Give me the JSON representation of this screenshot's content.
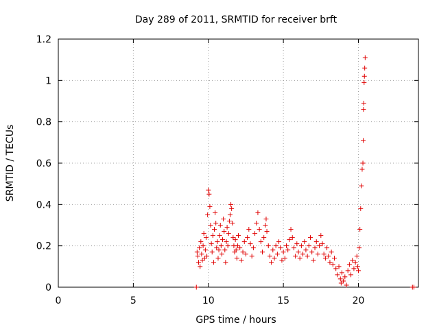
{
  "chart_data": {
    "type": "scatter",
    "title": "Day 289 of 2011, SRMTID for receiver brft",
    "xlabel": "GPS time / hours",
    "ylabel": "SRMTID / TECUs",
    "xlim": [
      0,
      24
    ],
    "ylim": [
      0,
      1.2
    ],
    "grid": true,
    "x_ticks": [
      0,
      5,
      10,
      15,
      20
    ],
    "x_tick_labels": [
      "0",
      "5",
      "10",
      "15",
      "20"
    ],
    "y_ticks": [
      0,
      0.2,
      0.4,
      0.6,
      0.8,
      1,
      1.2
    ],
    "y_tick_labels": [
      "0",
      "0.2",
      "0.4",
      "0.6",
      "0.8",
      "1",
      "1.2"
    ],
    "series": [
      {
        "name": "SRMTID",
        "color": "#e00000",
        "marker": "plus",
        "points": [
          [
            9.2,
            0.0
          ],
          [
            9.25,
            0.17
          ],
          [
            9.3,
            0.15
          ],
          [
            9.35,
            0.12
          ],
          [
            9.4,
            0.19
          ],
          [
            9.45,
            0.1
          ],
          [
            9.5,
            0.22
          ],
          [
            9.55,
            0.16
          ],
          [
            9.6,
            0.13
          ],
          [
            9.65,
            0.2
          ],
          [
            9.7,
            0.26
          ],
          [
            9.75,
            0.14
          ],
          [
            9.8,
            0.18
          ],
          [
            9.85,
            0.24
          ],
          [
            9.9,
            0.15
          ],
          [
            9.95,
            0.35
          ],
          [
            10.0,
            0.47
          ],
          [
            10.05,
            0.45
          ],
          [
            10.1,
            0.39
          ],
          [
            10.15,
            0.3
          ],
          [
            10.2,
            0.21
          ],
          [
            10.25,
            0.17
          ],
          [
            10.3,
            0.25
          ],
          [
            10.35,
            0.12
          ],
          [
            10.4,
            0.28
          ],
          [
            10.45,
            0.36
          ],
          [
            10.5,
            0.31
          ],
          [
            10.55,
            0.19
          ],
          [
            10.6,
            0.22
          ],
          [
            10.65,
            0.14
          ],
          [
            10.7,
            0.18
          ],
          [
            10.75,
            0.25
          ],
          [
            10.8,
            0.3
          ],
          [
            10.85,
            0.2
          ],
          [
            10.9,
            0.16
          ],
          [
            10.95,
            0.23
          ],
          [
            11.0,
            0.33
          ],
          [
            11.05,
            0.27
          ],
          [
            11.1,
            0.18
          ],
          [
            11.15,
            0.12
          ],
          [
            11.2,
            0.22
          ],
          [
            11.25,
            0.29
          ],
          [
            11.3,
            0.2
          ],
          [
            11.35,
            0.26
          ],
          [
            11.4,
            0.32
          ],
          [
            11.45,
            0.35
          ],
          [
            11.5,
            0.4
          ],
          [
            11.55,
            0.38
          ],
          [
            11.6,
            0.31
          ],
          [
            11.65,
            0.24
          ],
          [
            11.7,
            0.2
          ],
          [
            11.75,
            0.17
          ],
          [
            11.8,
            0.23
          ],
          [
            11.85,
            0.18
          ],
          [
            11.9,
            0.14
          ],
          [
            11.95,
            0.2
          ],
          [
            12.0,
            0.25
          ],
          [
            12.1,
            0.19
          ],
          [
            12.2,
            0.13
          ],
          [
            12.3,
            0.17
          ],
          [
            12.4,
            0.22
          ],
          [
            12.5,
            0.16
          ],
          [
            12.6,
            0.24
          ],
          [
            12.7,
            0.28
          ],
          [
            12.8,
            0.21
          ],
          [
            12.9,
            0.15
          ],
          [
            13.0,
            0.19
          ],
          [
            13.1,
            0.26
          ],
          [
            13.2,
            0.31
          ],
          [
            13.3,
            0.36
          ],
          [
            13.4,
            0.28
          ],
          [
            13.5,
            0.22
          ],
          [
            13.6,
            0.17
          ],
          [
            13.7,
            0.24
          ],
          [
            13.8,
            0.3
          ],
          [
            13.85,
            0.33
          ],
          [
            13.9,
            0.27
          ],
          [
            14.0,
            0.2
          ],
          [
            14.1,
            0.15
          ],
          [
            14.2,
            0.12
          ],
          [
            14.3,
            0.18
          ],
          [
            14.4,
            0.14
          ],
          [
            14.5,
            0.2
          ],
          [
            14.6,
            0.16
          ],
          [
            14.7,
            0.22
          ],
          [
            14.8,
            0.19
          ],
          [
            14.9,
            0.13
          ],
          [
            15.0,
            0.17
          ],
          [
            15.1,
            0.14
          ],
          [
            15.2,
            0.2
          ],
          [
            15.3,
            0.18
          ],
          [
            15.4,
            0.23
          ],
          [
            15.5,
            0.28
          ],
          [
            15.6,
            0.24
          ],
          [
            15.7,
            0.19
          ],
          [
            15.8,
            0.15
          ],
          [
            15.9,
            0.21
          ],
          [
            16.0,
            0.17
          ],
          [
            16.1,
            0.14
          ],
          [
            16.2,
            0.2
          ],
          [
            16.3,
            0.16
          ],
          [
            16.4,
            0.22
          ],
          [
            16.5,
            0.18
          ],
          [
            16.6,
            0.15
          ],
          [
            16.7,
            0.2
          ],
          [
            16.8,
            0.24
          ],
          [
            16.9,
            0.17
          ],
          [
            17.0,
            0.13
          ],
          [
            17.1,
            0.19
          ],
          [
            17.2,
            0.22
          ],
          [
            17.3,
            0.16
          ],
          [
            17.4,
            0.2
          ],
          [
            17.5,
            0.25
          ],
          [
            17.6,
            0.21
          ],
          [
            17.7,
            0.16
          ],
          [
            17.8,
            0.14
          ],
          [
            17.9,
            0.19
          ],
          [
            18.0,
            0.15
          ],
          [
            18.1,
            0.12
          ],
          [
            18.2,
            0.17
          ],
          [
            18.3,
            0.11
          ],
          [
            18.4,
            0.14
          ],
          [
            18.5,
            0.09
          ],
          [
            18.6,
            0.06
          ],
          [
            18.7,
            0.1
          ],
          [
            18.8,
            0.04
          ],
          [
            18.85,
            0.02
          ],
          [
            18.9,
            0.07
          ],
          [
            19.0,
            0.03
          ],
          [
            19.1,
            0.05
          ],
          [
            19.2,
            0.01
          ],
          [
            19.3,
            0.08
          ],
          [
            19.4,
            0.11
          ],
          [
            19.5,
            0.06
          ],
          [
            19.6,
            0.13
          ],
          [
            19.7,
            0.09
          ],
          [
            19.8,
            0.12
          ],
          [
            19.9,
            0.15
          ],
          [
            19.95,
            0.1
          ],
          [
            20.0,
            0.08
          ],
          [
            20.05,
            0.19
          ],
          [
            20.1,
            0.28
          ],
          [
            20.15,
            0.38
          ],
          [
            20.2,
            0.49
          ],
          [
            20.25,
            0.57
          ],
          [
            20.3,
            0.6
          ],
          [
            20.32,
            0.71
          ],
          [
            20.34,
            0.86
          ],
          [
            20.36,
            0.89
          ],
          [
            20.38,
            0.99
          ],
          [
            20.4,
            1.02
          ],
          [
            20.42,
            1.06
          ],
          [
            20.45,
            1.11
          ],
          [
            23.6,
            0.0
          ],
          [
            23.7,
            0.0
          ]
        ]
      }
    ]
  }
}
